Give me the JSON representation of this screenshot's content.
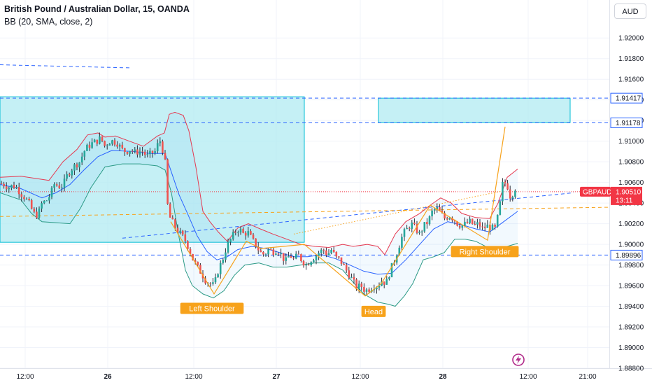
{
  "header": {
    "title": "British Pound / Australian Dollar, 15, OANDA",
    "indicator": "BB (20, SMA, close, 2)",
    "currency": "AUD"
  },
  "colors": {
    "up": "#26a69a",
    "down": "#ef5350",
    "candle_body": "#2a2e39",
    "bb_upper": "#e53950",
    "bb_lower": "#2b9a86",
    "bb_basis": "#2962ff",
    "zone_fill": "#b2ebf2",
    "zone_stroke": "#00bcd4",
    "pattern": "#f7a21b",
    "level": "#2962ff",
    "price_tag": "#f23645"
  },
  "chart_data": {
    "type": "candlestick",
    "symbol": "GBPAUD",
    "interval": "15",
    "y_axis": {
      "min": 1.888,
      "max": 1.923,
      "tick_labels": [
        "1.92000",
        "1.91800",
        "1.91600",
        "1.91400",
        "1.91200",
        "1.91000",
        "1.90800",
        "1.90600",
        "1.90400",
        "1.90200",
        "1.90000",
        "1.89800",
        "1.89600",
        "1.89400",
        "1.89200",
        "1.89000",
        "1.88800"
      ]
    },
    "x_axis": {
      "tick_labels": [
        {
          "label": "12:00",
          "major": false
        },
        {
          "label": "26",
          "major": true
        },
        {
          "label": "12:00",
          "major": false
        },
        {
          "label": "27",
          "major": true
        },
        {
          "label": "12:00",
          "major": false
        },
        {
          "label": "28",
          "major": true
        },
        {
          "label": "12:00",
          "major": false
        },
        {
          "label": "21:00",
          "major": false
        }
      ]
    },
    "close_path": [
      [
        0,
        1.9059
      ],
      [
        6,
        1.9058
      ],
      [
        12,
        1.9055
      ],
      [
        18,
        1.9057
      ],
      [
        24,
        1.9055
      ],
      [
        30,
        1.9049
      ],
      [
        36,
        1.9045
      ],
      [
        42,
        1.9039
      ],
      [
        48,
        1.903
      ],
      [
        54,
        1.9028
      ],
      [
        60,
        1.904
      ],
      [
        66,
        1.9042
      ],
      [
        72,
        1.9048
      ],
      [
        78,
        1.9059
      ],
      [
        84,
        1.9056
      ],
      [
        90,
        1.9057
      ],
      [
        96,
        1.9067
      ],
      [
        102,
        1.9073
      ],
      [
        108,
        1.9077
      ],
      [
        114,
        1.908
      ],
      [
        120,
        1.909
      ],
      [
        126,
        1.9095
      ],
      [
        132,
        1.9098
      ],
      [
        138,
        1.91
      ],
      [
        144,
        1.9103
      ],
      [
        150,
        1.9095
      ],
      [
        156,
        1.91
      ],
      [
        162,
        1.91
      ],
      [
        168,
        1.9098
      ],
      [
        174,
        1.9092
      ],
      [
        180,
        1.909
      ],
      [
        186,
        1.9092
      ],
      [
        192,
        1.9089
      ],
      [
        198,
        1.909
      ],
      [
        204,
        1.909
      ],
      [
        210,
        1.9085
      ],
      [
        216,
        1.9088
      ],
      [
        222,
        1.909
      ],
      [
        228,
        1.9102
      ],
      [
        234,
        1.9088
      ],
      [
        238,
        1.907
      ],
      [
        240,
        1.903
      ],
      [
        246,
        1.9022
      ],
      [
        252,
        1.9015
      ],
      [
        258,
        1.901
      ],
      [
        264,
        1.9005
      ],
      [
        270,
        1.8996
      ],
      [
        276,
        1.8985
      ],
      [
        282,
        1.8978
      ],
      [
        288,
        1.8972
      ],
      [
        294,
        1.8965
      ],
      [
        300,
        1.8962
      ],
      [
        306,
        1.896
      ],
      [
        312,
        1.8975
      ],
      [
        318,
        1.8985
      ],
      [
        324,
        1.8998
      ],
      [
        330,
        1.9005
      ],
      [
        336,
        1.9012
      ],
      [
        342,
        1.9015
      ],
      [
        348,
        1.901
      ],
      [
        354,
        1.9012
      ],
      [
        360,
        1.9005
      ],
      [
        366,
        1.8999
      ],
      [
        372,
        1.8992
      ],
      [
        378,
        1.899
      ],
      [
        384,
        1.8995
      ],
      [
        390,
        1.8993
      ],
      [
        396,
        1.8995
      ],
      [
        402,
        1.899
      ],
      [
        408,
        1.8983
      ],
      [
        414,
        1.899
      ],
      [
        420,
        1.8985
      ],
      [
        426,
        1.899
      ],
      [
        432,
        1.8984
      ],
      [
        438,
        1.898
      ],
      [
        444,
        1.8985
      ],
      [
        450,
        1.8988
      ],
      [
        456,
        1.8992
      ],
      [
        462,
        1.8995
      ],
      [
        468,
        1.899
      ],
      [
        474,
        1.8995
      ],
      [
        480,
        1.8987
      ],
      [
        486,
        1.8985
      ],
      [
        492,
        1.8978
      ],
      [
        498,
        1.8972
      ],
      [
        504,
        1.8965
      ],
      [
        510,
        1.8958
      ],
      [
        516,
        1.896
      ],
      [
        522,
        1.8955
      ],
      [
        528,
        1.8957
      ],
      [
        534,
        1.896
      ],
      [
        540,
        1.896
      ],
      [
        546,
        1.8965
      ],
      [
        552,
        1.8962
      ],
      [
        558,
        1.8975
      ],
      [
        564,
        1.8985
      ],
      [
        570,
        1.8998
      ],
      [
        576,
        1.901
      ],
      [
        582,
        1.9015
      ],
      [
        588,
        1.902
      ],
      [
        594,
        1.9015
      ],
      [
        600,
        1.901
      ],
      [
        606,
        1.9018
      ],
      [
        612,
        1.9022
      ],
      [
        618,
        1.9032
      ],
      [
        624,
        1.9035
      ],
      [
        630,
        1.903
      ],
      [
        636,
        1.9025
      ],
      [
        642,
        1.9028
      ],
      [
        648,
        1.9025
      ],
      [
        654,
        1.902
      ],
      [
        660,
        1.9018
      ],
      [
        666,
        1.902
      ],
      [
        672,
        1.9022
      ],
      [
        678,
        1.9018
      ],
      [
        684,
        1.902
      ],
      [
        690,
        1.9015
      ],
      [
        696,
        1.9018
      ],
      [
        702,
        1.9016
      ],
      [
        708,
        1.9015
      ],
      [
        714,
        1.9035
      ],
      [
        718,
        1.9058
      ],
      [
        724,
        1.906
      ],
      [
        730,
        1.9045
      ],
      [
        736,
        1.9055
      ],
      [
        740,
        1.9051
      ]
    ],
    "bollinger": {
      "upper": [
        [
          0,
          1.9065
        ],
        [
          30,
          1.9066
        ],
        [
          50,
          1.9064
        ],
        [
          70,
          1.9062
        ],
        [
          90,
          1.908
        ],
        [
          110,
          1.9092
        ],
        [
          125,
          1.9106
        ],
        [
          140,
          1.9108
        ],
        [
          150,
          1.9104
        ],
        [
          165,
          1.9105
        ],
        [
          185,
          1.91
        ],
        [
          205,
          1.9095
        ],
        [
          225,
          1.9105
        ],
        [
          235,
          1.9108
        ],
        [
          242,
          1.9126
        ],
        [
          250,
          1.9128
        ],
        [
          262,
          1.9125
        ],
        [
          270,
          1.911
        ],
        [
          280,
          1.9075
        ],
        [
          290,
          1.9032
        ],
        [
          300,
          1.9022
        ],
        [
          312,
          1.9012
        ],
        [
          325,
          1.9003
        ],
        [
          340,
          1.9016
        ],
        [
          355,
          1.902
        ],
        [
          372,
          1.9015
        ],
        [
          390,
          1.901
        ],
        [
          410,
          1.9005
        ],
        [
          430,
          1.9
        ],
        [
          450,
          1.8998
        ],
        [
          470,
          1.8997
        ],
        [
          490,
          1.9
        ],
        [
          505,
          1.8998
        ],
        [
          525,
          1.9
        ],
        [
          540,
          1.8998
        ],
        [
          550,
          1.899
        ],
        [
          565,
          1.901
        ],
        [
          580,
          1.9022
        ],
        [
          600,
          1.903
        ],
        [
          615,
          1.9038
        ],
        [
          630,
          1.9045
        ],
        [
          645,
          1.904
        ],
        [
          660,
          1.903
        ],
        [
          680,
          1.9026
        ],
        [
          700,
          1.9025
        ],
        [
          712,
          1.904
        ],
        [
          725,
          1.9065
        ],
        [
          740,
          1.9073
        ]
      ],
      "lower": [
        [
          0,
          1.905
        ],
        [
          30,
          1.9043
        ],
        [
          45,
          1.903
        ],
        [
          60,
          1.9022
        ],
        [
          80,
          1.9021
        ],
        [
          100,
          1.902
        ],
        [
          115,
          1.9035
        ],
        [
          130,
          1.9055
        ],
        [
          150,
          1.9075
        ],
        [
          175,
          1.9078
        ],
        [
          200,
          1.9078
        ],
        [
          225,
          1.9076
        ],
        [
          236,
          1.9072
        ],
        [
          245,
          1.905
        ],
        [
          255,
          1.901
        ],
        [
          265,
          1.8975
        ],
        [
          275,
          1.896
        ],
        [
          290,
          1.8952
        ],
        [
          305,
          1.8948
        ],
        [
          320,
          1.8955
        ],
        [
          335,
          1.897
        ],
        [
          350,
          1.898
        ],
        [
          370,
          1.8982
        ],
        [
          390,
          1.8978
        ],
        [
          410,
          1.8978
        ],
        [
          430,
          1.898
        ],
        [
          450,
          1.8982
        ],
        [
          470,
          1.8982
        ],
        [
          490,
          1.8975
        ],
        [
          505,
          1.8963
        ],
        [
          520,
          1.8952
        ],
        [
          540,
          1.8944
        ],
        [
          555,
          1.8942
        ],
        [
          565,
          1.894
        ],
        [
          578,
          1.895
        ],
        [
          590,
          1.8962
        ],
        [
          605,
          1.8985
        ],
        [
          620,
          1.8988
        ],
        [
          635,
          1.8992
        ],
        [
          650,
          1.9005
        ],
        [
          665,
          1.9005
        ],
        [
          680,
          1.9003
        ],
        [
          700,
          1.8996
        ],
        [
          712,
          1.8994
        ],
        [
          725,
          1.8998
        ],
        [
          740,
          1.9001
        ]
      ],
      "basis": [
        [
          0,
          1.9058
        ],
        [
          30,
          1.9054
        ],
        [
          60,
          1.9045
        ],
        [
          80,
          1.905
        ],
        [
          100,
          1.9058
        ],
        [
          120,
          1.9072
        ],
        [
          140,
          1.9085
        ],
        [
          160,
          1.9091
        ],
        [
          190,
          1.909
        ],
        [
          215,
          1.9088
        ],
        [
          236,
          1.9088
        ],
        [
          246,
          1.9068
        ],
        [
          256,
          1.9048
        ],
        [
          268,
          1.903
        ],
        [
          282,
          1.9008
        ],
        [
          296,
          1.8993
        ],
        [
          310,
          1.8985
        ],
        [
          325,
          1.8988
        ],
        [
          340,
          1.8995
        ],
        [
          360,
          1.8998
        ],
        [
          380,
          1.8996
        ],
        [
          400,
          1.8992
        ],
        [
          420,
          1.8988
        ],
        [
          440,
          1.8988
        ],
        [
          460,
          1.899
        ],
        [
          480,
          1.8986
        ],
        [
          500,
          1.898
        ],
        [
          520,
          1.8974
        ],
        [
          540,
          1.8971
        ],
        [
          560,
          1.8972
        ],
        [
          580,
          1.8985
        ],
        [
          600,
          1.9
        ],
        [
          620,
          1.9015
        ],
        [
          640,
          1.9022
        ],
        [
          660,
          1.9019
        ],
        [
          680,
          1.9015
        ],
        [
          700,
          1.9012
        ],
        [
          720,
          1.9022
        ],
        [
          740,
          1.9032
        ]
      ]
    },
    "zones": [
      {
        "x": [
          0,
          435
        ],
        "y": [
          1.9002,
          1.9143
        ]
      },
      {
        "x": [
          541,
          815
        ],
        "y": [
          1.9118,
          1.91417
        ]
      }
    ],
    "horizontal_levels": [
      {
        "value": 1.91417,
        "label": "1.91417"
      },
      {
        "value": 1.91178,
        "label": "1.91178"
      },
      {
        "value": 1.89896,
        "label": "1.89896"
      }
    ],
    "current_price": {
      "symbol": "GBPAUD",
      "price": "1.90510",
      "countdown": "13:11"
    },
    "trendlines": [
      {
        "from": [
          0,
          1.9174
        ],
        "to": [
          188,
          1.9171
        ],
        "style": "dashed",
        "color": "level"
      },
      {
        "from": [
          175,
          1.9006
        ],
        "to": [
          820,
          1.905
        ],
        "style": "dashed",
        "color": "level"
      },
      {
        "from": [
          0,
          1.9027
        ],
        "to": [
          875,
          1.9036
        ],
        "style": "dashed",
        "color": "pattern"
      },
      {
        "from": [
          420,
          1.901
        ],
        "to": [
          720,
          1.9052
        ],
        "style": "dotted",
        "color": "pattern"
      }
    ],
    "pattern_path": [
      [
        244,
        1.9022
      ],
      [
        306,
        1.8952
      ],
      [
        352,
        1.9003
      ],
      [
        373,
        1.8996
      ],
      [
        435,
        1.9
      ],
      [
        522,
        1.895
      ],
      [
        545,
        1.8962
      ],
      [
        615,
        1.9038
      ],
      [
        697,
        1.9004
      ],
      [
        722,
        1.9114
      ]
    ],
    "annotations": [
      {
        "text": "Left Shoulder",
        "x": 303,
        "y": 1.8938
      },
      {
        "text": "Head",
        "x": 534,
        "y": 1.8935
      },
      {
        "text": "Right Shoulder",
        "x": 693,
        "y": 1.8993
      }
    ]
  }
}
